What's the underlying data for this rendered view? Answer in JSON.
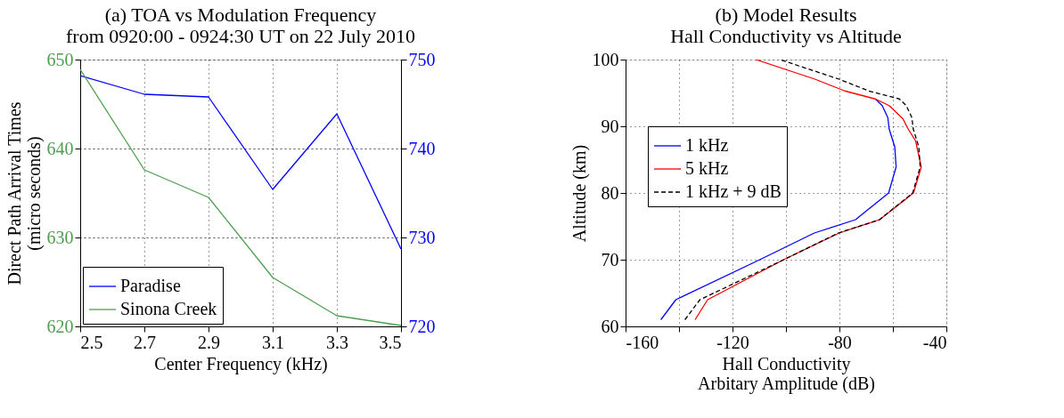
{
  "chart_data": [
    {
      "type": "line",
      "title": "(a) TOA vs Modulation Frequency\nfrom 0920:00 - 0924:30 UT on 22 July 2010",
      "xlabel": "Center Frequency (kHz)",
      "ylabel": "Direct Path Arrival Times\n(micro seconds)",
      "x": [
        2.5,
        2.7,
        2.9,
        3.1,
        3.3,
        3.5
      ],
      "series": [
        {
          "name": "Paradise",
          "color": "#0000ff",
          "axis": "y2",
          "values": [
            748.2,
            746.1,
            745.8,
            735.4,
            743.9,
            728.7
          ]
        },
        {
          "name": "Sinona Creek",
          "color": "#4c9f4c",
          "values": [
            648.9,
            637.6,
            634.5,
            625.5,
            621.2,
            620.1
          ]
        }
      ],
      "xlim": [
        2.5,
        3.5
      ],
      "xticks": [
        2.5,
        2.7,
        2.9,
        3.1,
        3.3,
        3.5
      ],
      "ylim": [
        620,
        650
      ],
      "yticks": [
        620,
        630,
        640,
        650
      ],
      "y2lim": [
        720,
        750
      ],
      "y2ticks": [
        720,
        730,
        740,
        750
      ],
      "grid": true,
      "legend": "bottom left",
      "line_style": "solid",
      "marker": "none"
    },
    {
      "type": "line",
      "title": "(b) Model Results\nHall Conductivity vs Altitude",
      "xlabel": "Hall Conductivity\nArbitary Amplitude (dB)",
      "ylabel": "Altitude (km)",
      "series": [
        {
          "name": "1 kHz",
          "color": "#0000ff",
          "line_style": "solid",
          "x": [
            -146.8,
            -141.2,
            -109.8,
            -89.4,
            -74.0,
            -61.6,
            -58.8,
            -59.3,
            -61.4,
            -61.9,
            -64.0,
            -66.6
          ],
          "values": [
            61.0,
            64.0,
            70.0,
            74.0,
            76.0,
            80.0,
            83.9,
            86.9,
            89.6,
            91.3,
            93.1,
            94.1
          ]
        },
        {
          "name": "5 kHz",
          "color": "#ff0000",
          "line_style": "solid",
          "x": [
            -134.0,
            -129.3,
            -100.9,
            -80.1,
            -65.0,
            -52.3,
            -49.4,
            -51.5,
            -54.6,
            -56.2,
            -61.4,
            -66.6,
            -78.0,
            -89.4,
            -111.3
          ],
          "values": [
            61.0,
            64.0,
            70.0,
            74.0,
            76.0,
            80.0,
            83.9,
            87.8,
            89.8,
            91.1,
            93.1,
            94.1,
            95.3,
            97.1,
            100.0
          ]
        },
        {
          "name": "1 kHz + 9 dB",
          "color": "#000000",
          "line_style": "dashed",
          "x": [
            -137.8,
            -132.2,
            -100.8,
            -80.4,
            -65.0,
            -52.6,
            -49.8,
            -50.3,
            -52.4,
            -52.9,
            -55.0,
            -57.6,
            -69.0,
            -80.4,
            -102.3
          ],
          "values": [
            61.0,
            64.0,
            70.0,
            74.0,
            76.0,
            80.0,
            83.9,
            86.9,
            89.6,
            91.3,
            93.1,
            94.1,
            95.3,
            97.1,
            100.0
          ]
        }
      ],
      "xlim": [
        -160,
        -40
      ],
      "xticks": [
        -160,
        {
          "value": -140,
          "label": null
        },
        -120,
        {
          "value": -100,
          "label": null
        },
        -80,
        {
          "value": -60,
          "label": null
        },
        -40
      ],
      "ylim": [
        60,
        100
      ],
      "yticks": [
        60,
        70,
        80,
        90,
        100
      ],
      "grid": true,
      "legend": "left",
      "marker": "none"
    }
  ]
}
